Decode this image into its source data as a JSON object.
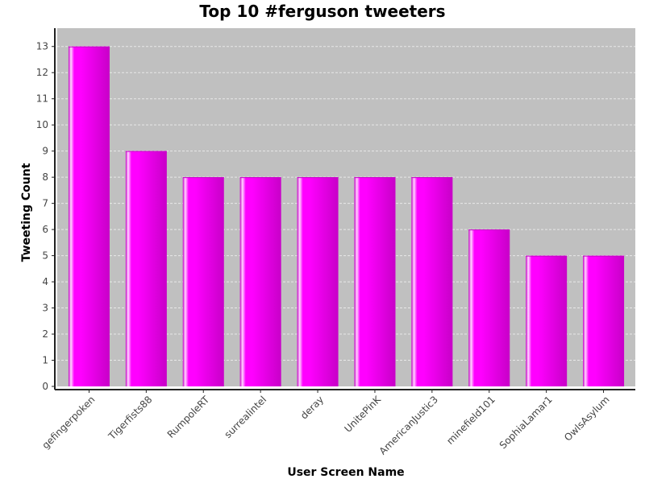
{
  "chart_data": {
    "type": "bar",
    "title": "Top 10 #ferguson tweeters",
    "xlabel": "User Screen Name",
    "ylabel": "Tweeting Count",
    "categories": [
      "gefingerpoken",
      "Tigerfists88",
      "RumpoleRT",
      "surrealintel",
      "deray",
      "UnitePinK",
      "AmericanJustic3",
      "minefield101",
      "SophiaLamar1",
      "OwlsAsylum"
    ],
    "values": [
      13,
      9,
      8,
      8,
      8,
      8,
      8,
      6,
      5,
      5
    ],
    "ylim": [
      0,
      13.7
    ],
    "yticks": [
      0,
      1,
      2,
      3,
      4,
      5,
      6,
      7,
      8,
      9,
      10,
      11,
      12,
      13
    ],
    "grid": true,
    "legend": "none",
    "colors": {
      "bar": "#ff00ff",
      "bar_dark": "#c800c8",
      "bar_highlight": "#ffd8ff",
      "plot_background": "#c0c0c0",
      "gridline": "#e8e8e8",
      "axis": "#222222"
    }
  }
}
